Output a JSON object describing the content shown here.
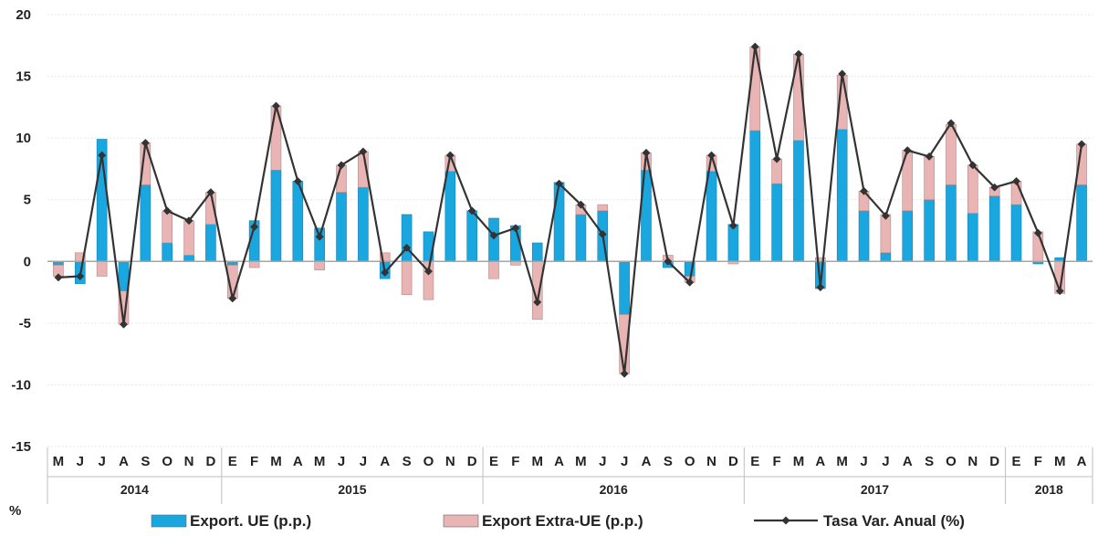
{
  "chart_data": {
    "type": "bar",
    "stacked": true,
    "title": "",
    "ylabel": "%",
    "ylim": [
      -15,
      20
    ],
    "yticks": [
      20,
      15,
      10,
      5,
      0,
      -5,
      -10,
      -15
    ],
    "grid": true,
    "legend_position": "bottom",
    "months": [
      "M",
      "J",
      "J",
      "A",
      "S",
      "O",
      "N",
      "D",
      "E",
      "F",
      "M",
      "A",
      "M",
      "J",
      "J",
      "A",
      "S",
      "O",
      "N",
      "D",
      "E",
      "F",
      "M",
      "A",
      "M",
      "J",
      "J",
      "A",
      "S",
      "O",
      "N",
      "D",
      "E",
      "F",
      "M",
      "A",
      "M",
      "J",
      "J",
      "A",
      "S",
      "O",
      "N",
      "D",
      "E",
      "F",
      "M",
      "A"
    ],
    "years": [
      {
        "label": "2014",
        "count": 8
      },
      {
        "label": "2015",
        "count": 12
      },
      {
        "label": "2016",
        "count": 12
      },
      {
        "label": "2017",
        "count": 12
      },
      {
        "label": "2018",
        "count": 4
      }
    ],
    "series": [
      {
        "name": "Export. UE (p.p.)",
        "kind": "bar",
        "color": "#1aa7e0",
        "values": [
          -0.3,
          -1.8,
          9.9,
          -2.4,
          6.2,
          1.5,
          0.5,
          3.0,
          -0.3,
          3.3,
          7.4,
          6.5,
          2.7,
          5.6,
          6.0,
          -1.4,
          3.8,
          2.4,
          7.3,
          4.1,
          3.5,
          2.9,
          1.5,
          6.4,
          3.8,
          4.1,
          -4.3,
          7.4,
          -0.5,
          -1.2,
          7.3,
          3.0,
          10.6,
          6.3,
          9.8,
          -2.2,
          10.7,
          4.1,
          0.7,
          4.1,
          5.0,
          6.2,
          3.9,
          5.3,
          4.6,
          -0.2,
          0.3,
          6.2
        ]
      },
      {
        "name": "Export Extra-UE (p.p.)",
        "kind": "bar",
        "color": "#e8b4b4",
        "values": [
          -0.9,
          0.7,
          -1.2,
          -2.7,
          3.4,
          2.6,
          2.8,
          2.6,
          -2.7,
          -0.5,
          5.2,
          0.0,
          -0.7,
          2.2,
          2.9,
          0.7,
          -2.7,
          -3.1,
          1.3,
          0.0,
          -1.4,
          -0.3,
          -4.7,
          0.0,
          0.8,
          0.5,
          -4.8,
          1.4,
          0.5,
          -0.5,
          1.3,
          -0.2,
          6.8,
          2.0,
          7.0,
          0.3,
          4.4,
          1.6,
          3.1,
          4.9,
          3.5,
          4.9,
          3.9,
          0.7,
          1.9,
          2.4,
          -2.6,
          3.3
        ]
      },
      {
        "name": "Tasa Var. Anual (%)",
        "kind": "line",
        "color": "#333333",
        "values": [
          -1.3,
          -1.2,
          8.6,
          -5.1,
          9.6,
          4.1,
          3.3,
          5.6,
          -3.0,
          2.8,
          12.6,
          6.5,
          2.0,
          7.8,
          8.9,
          -0.9,
          1.1,
          -0.8,
          8.6,
          4.1,
          2.1,
          2.7,
          -3.3,
          6.3,
          4.6,
          2.2,
          -9.1,
          8.8,
          0.0,
          -1.7,
          8.6,
          2.9,
          17.4,
          8.3,
          16.8,
          -2.1,
          15.2,
          5.7,
          3.7,
          9.0,
          8.5,
          11.2,
          7.8,
          6.0,
          6.5,
          2.3,
          -2.4,
          9.5
        ]
      }
    ]
  }
}
